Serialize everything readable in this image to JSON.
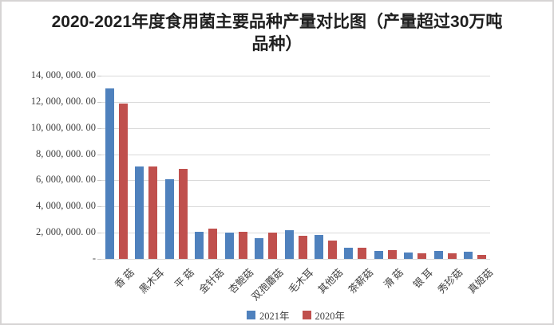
{
  "frame": {
    "background": "#ffffff",
    "border_color": "#d6d4d4"
  },
  "chart_data": {
    "type": "bar",
    "title": "2020-2021年度食用菌主要品种产量对比图（产量超过30万吨品种）",
    "categories": [
      "香 菇",
      "黑木耳",
      "平 菇",
      "金针菇",
      "杏鲍菇",
      "双孢蘑菇",
      "毛木耳",
      "其他菇",
      "茶薪菇",
      "滑 菇",
      "银 耳",
      "秀珍菇",
      "真姬菇"
    ],
    "series": [
      {
        "name": "2021年",
        "color": "#4f81bd",
        "values": [
          13000000,
          7050000,
          6080000,
          2080000,
          2000000,
          1580000,
          2170000,
          1820000,
          840000,
          600000,
          490000,
          620000,
          530000
        ]
      },
      {
        "name": "2020年",
        "color": "#c0504d",
        "values": [
          11900000,
          7060000,
          6850000,
          2300000,
          2080000,
          2000000,
          1790000,
          1390000,
          880000,
          650000,
          450000,
          420000,
          320000
        ]
      }
    ],
    "xlabel": "",
    "ylabel": "",
    "ylim": [
      0,
      14000000
    ],
    "ytick_step": 2000000,
    "ytick_labels_top_to_bottom": [
      "14, 000, 000. 00",
      "12, 000, 000. 00",
      "10, 000, 000. 00",
      "8, 000, 000. 00",
      "6, 000, 000. 00",
      "4, 000, 000. 00",
      "2, 000, 000. 00",
      "-"
    ],
    "grid": true,
    "gridline_color": "#d9d9d9",
    "axis_text_color": "#3f3f3f",
    "legend_position": "bottom"
  }
}
